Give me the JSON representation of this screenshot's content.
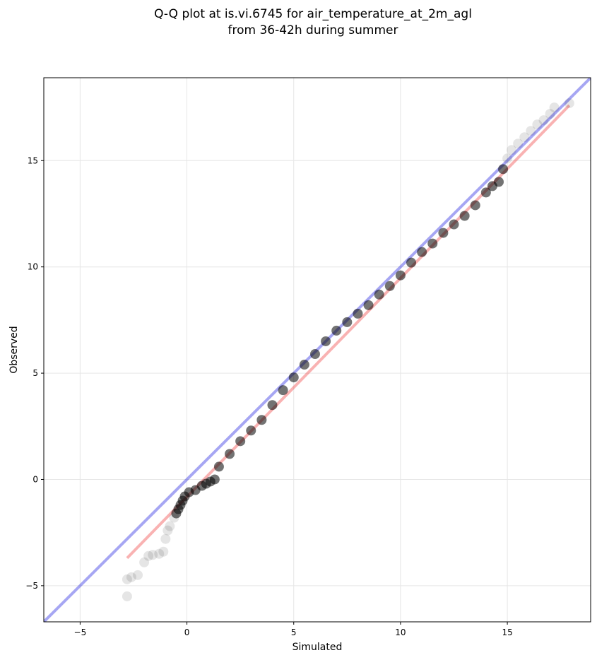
{
  "chart_data": {
    "type": "scatter",
    "title": [
      "Q-Q plot at is.vi.6745 for air_temperature_at_2m_agl",
      "from 36-42h during summer"
    ],
    "xlabel": "Simulated",
    "ylabel": "Observed",
    "xlim": [
      -6.7,
      18.9
    ],
    "ylim": [
      -6.7,
      18.9
    ],
    "grid": true,
    "x_ticks": [
      -5,
      0,
      5,
      10,
      15
    ],
    "y_ticks": [
      -5,
      0,
      5,
      10,
      15
    ],
    "x_tick_labels": [
      "−5",
      "0",
      "5",
      "10",
      "15"
    ],
    "y_tick_labels": [
      "−5",
      "0",
      "5",
      "10",
      "15"
    ],
    "colors": {
      "points": "#000000",
      "identity_line": "#0000dd",
      "fit_line": "#ee2222",
      "grid": "#e6e6e6"
    },
    "identity_line": {
      "x": [
        -6.7,
        18.9
      ],
      "y": [
        -6.7,
        18.9
      ]
    },
    "fit_line": {
      "x": [
        -2.8,
        17.9
      ],
      "y": [
        -3.7,
        17.6
      ]
    },
    "quantiles_x": [
      -2.8,
      -2.8,
      -2.6,
      -2.3,
      -2.0,
      -1.8,
      -1.6,
      -1.3,
      -1.1,
      -1.0,
      -0.9,
      -0.8,
      -0.6,
      -0.5,
      -0.4,
      -0.3,
      -0.2,
      -0.1,
      0.1,
      0.4,
      0.7,
      0.9,
      1.1,
      1.3,
      1.5,
      2.0,
      2.5,
      3.0,
      3.5,
      4.0,
      4.5,
      5.0,
      5.5,
      6.0,
      6.5,
      7.0,
      7.5,
      8.0,
      8.5,
      9.0,
      9.5,
      10.0,
      10.5,
      11.0,
      11.5,
      12.0,
      12.5,
      13.0,
      13.5,
      14.0,
      14.3,
      14.6,
      14.8,
      15.0,
      15.2,
      15.5,
      15.8,
      16.1,
      16.4,
      16.7,
      17.0,
      17.2,
      17.9
    ],
    "quantiles_y": [
      -5.5,
      -4.7,
      -4.6,
      -4.5,
      -3.9,
      -3.6,
      -3.55,
      -3.5,
      -3.4,
      -2.8,
      -2.4,
      -2.2,
      -1.8,
      -1.6,
      -1.4,
      -1.2,
      -1.0,
      -0.8,
      -0.6,
      -0.5,
      -0.3,
      -0.2,
      -0.1,
      0.0,
      0.6,
      1.2,
      1.8,
      2.3,
      2.8,
      3.5,
      4.2,
      4.8,
      5.4,
      5.9,
      6.5,
      7.0,
      7.4,
      7.8,
      8.2,
      8.7,
      9.1,
      9.6,
      10.2,
      10.7,
      11.1,
      11.6,
      12.0,
      12.4,
      12.9,
      13.5,
      13.8,
      14.0,
      14.6,
      15.1,
      15.5,
      15.8,
      16.1,
      16.4,
      16.7,
      16.9,
      17.2,
      17.5,
      17.7
    ]
  }
}
